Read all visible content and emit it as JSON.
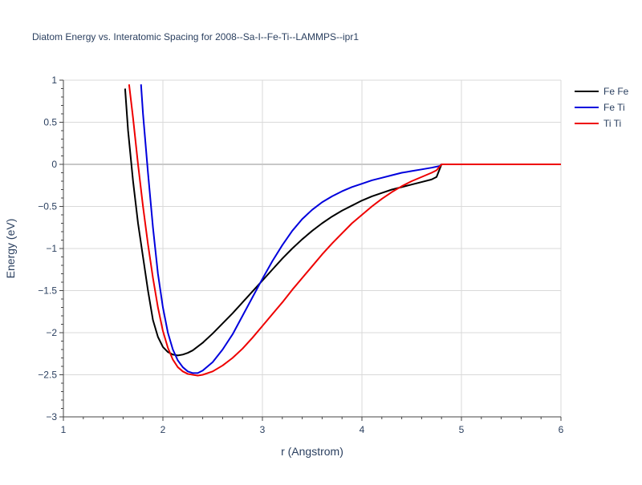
{
  "chart_data": {
    "type": "line",
    "title": "Diatom Energy vs. Interatomic Spacing for 2008--Sa-I--Fe-Ti--LAMMPS--ipr1",
    "xlabel": "r (Angstrom)",
    "ylabel": "Energy (eV)",
    "xlim": [
      1,
      6
    ],
    "ylim": [
      -3,
      1
    ],
    "xticks": [
      1,
      2,
      3,
      4,
      5,
      6
    ],
    "xtick_labels": [
      "1",
      "2",
      "3",
      "4",
      "5",
      "6"
    ],
    "yticks": [
      -3,
      -2.5,
      -2,
      -1.5,
      -1,
      -0.5,
      0,
      0.5,
      1
    ],
    "ytick_labels": [
      "−3",
      "−2.5",
      "−2",
      "−1.5",
      "−1",
      "−0.5",
      "0",
      "0.5",
      "1"
    ],
    "grid": true,
    "legend_position": "top-right",
    "series": [
      {
        "name": "Fe Fe",
        "color": "#000000",
        "x": [
          1.62,
          1.65,
          1.7,
          1.75,
          1.8,
          1.85,
          1.9,
          1.95,
          2.0,
          2.05,
          2.1,
          2.15,
          2.2,
          2.25,
          2.3,
          2.4,
          2.5,
          2.6,
          2.7,
          2.8,
          2.9,
          3.0,
          3.1,
          3.2,
          3.3,
          3.4,
          3.5,
          3.6,
          3.7,
          3.8,
          3.9,
          4.0,
          4.1,
          4.2,
          4.3,
          4.4,
          4.5,
          4.6,
          4.7,
          4.75,
          4.8,
          4.9,
          5.0,
          5.5,
          6.0
        ],
        "y": [
          0.9,
          0.4,
          -0.2,
          -0.7,
          -1.1,
          -1.5,
          -1.85,
          -2.05,
          -2.17,
          -2.23,
          -2.26,
          -2.27,
          -2.26,
          -2.24,
          -2.21,
          -2.12,
          -2.01,
          -1.89,
          -1.77,
          -1.64,
          -1.51,
          -1.38,
          -1.25,
          -1.12,
          -1.0,
          -0.89,
          -0.79,
          -0.7,
          -0.62,
          -0.55,
          -0.49,
          -0.43,
          -0.38,
          -0.34,
          -0.3,
          -0.27,
          -0.24,
          -0.21,
          -0.18,
          -0.15,
          0.0,
          0.0,
          0.0,
          0.0,
          0.0
        ]
      },
      {
        "name": "Fe Ti",
        "color": "#0000dd",
        "x": [
          1.78,
          1.8,
          1.85,
          1.9,
          1.95,
          2.0,
          2.05,
          2.1,
          2.15,
          2.2,
          2.25,
          2.3,
          2.35,
          2.4,
          2.5,
          2.6,
          2.7,
          2.8,
          2.9,
          3.0,
          3.1,
          3.2,
          3.3,
          3.4,
          3.5,
          3.6,
          3.7,
          3.8,
          3.9,
          4.0,
          4.1,
          4.2,
          4.3,
          4.4,
          4.5,
          4.6,
          4.7,
          4.78,
          4.8,
          5.0,
          5.5,
          6.0
        ],
        "y": [
          0.95,
          0.6,
          -0.1,
          -0.75,
          -1.3,
          -1.7,
          -2.0,
          -2.2,
          -2.33,
          -2.41,
          -2.46,
          -2.48,
          -2.48,
          -2.45,
          -2.35,
          -2.2,
          -2.02,
          -1.8,
          -1.58,
          -1.36,
          -1.15,
          -0.96,
          -0.79,
          -0.65,
          -0.54,
          -0.45,
          -0.38,
          -0.32,
          -0.27,
          -0.23,
          -0.19,
          -0.16,
          -0.13,
          -0.1,
          -0.08,
          -0.06,
          -0.04,
          -0.02,
          0.0,
          0.0,
          0.0,
          0.0
        ]
      },
      {
        "name": "Ti Ti",
        "color": "#ee0000",
        "x": [
          1.66,
          1.7,
          1.75,
          1.8,
          1.85,
          1.9,
          1.95,
          2.0,
          2.05,
          2.1,
          2.15,
          2.2,
          2.25,
          2.3,
          2.35,
          2.4,
          2.5,
          2.6,
          2.7,
          2.8,
          2.9,
          3.0,
          3.1,
          3.2,
          3.3,
          3.4,
          3.5,
          3.6,
          3.7,
          3.8,
          3.9,
          4.0,
          4.1,
          4.2,
          4.3,
          4.4,
          4.5,
          4.6,
          4.7,
          4.75,
          4.8,
          5.0,
          5.5,
          6.0
        ],
        "y": [
          0.95,
          0.55,
          0.0,
          -0.5,
          -0.95,
          -1.35,
          -1.7,
          -1.98,
          -2.18,
          -2.32,
          -2.41,
          -2.46,
          -2.49,
          -2.5,
          -2.51,
          -2.5,
          -2.46,
          -2.39,
          -2.3,
          -2.19,
          -2.06,
          -1.92,
          -1.78,
          -1.64,
          -1.49,
          -1.35,
          -1.21,
          -1.07,
          -0.94,
          -0.82,
          -0.7,
          -0.6,
          -0.5,
          -0.41,
          -0.33,
          -0.26,
          -0.2,
          -0.15,
          -0.1,
          -0.07,
          0.0,
          0.0,
          0.0,
          0.0
        ]
      }
    ]
  }
}
